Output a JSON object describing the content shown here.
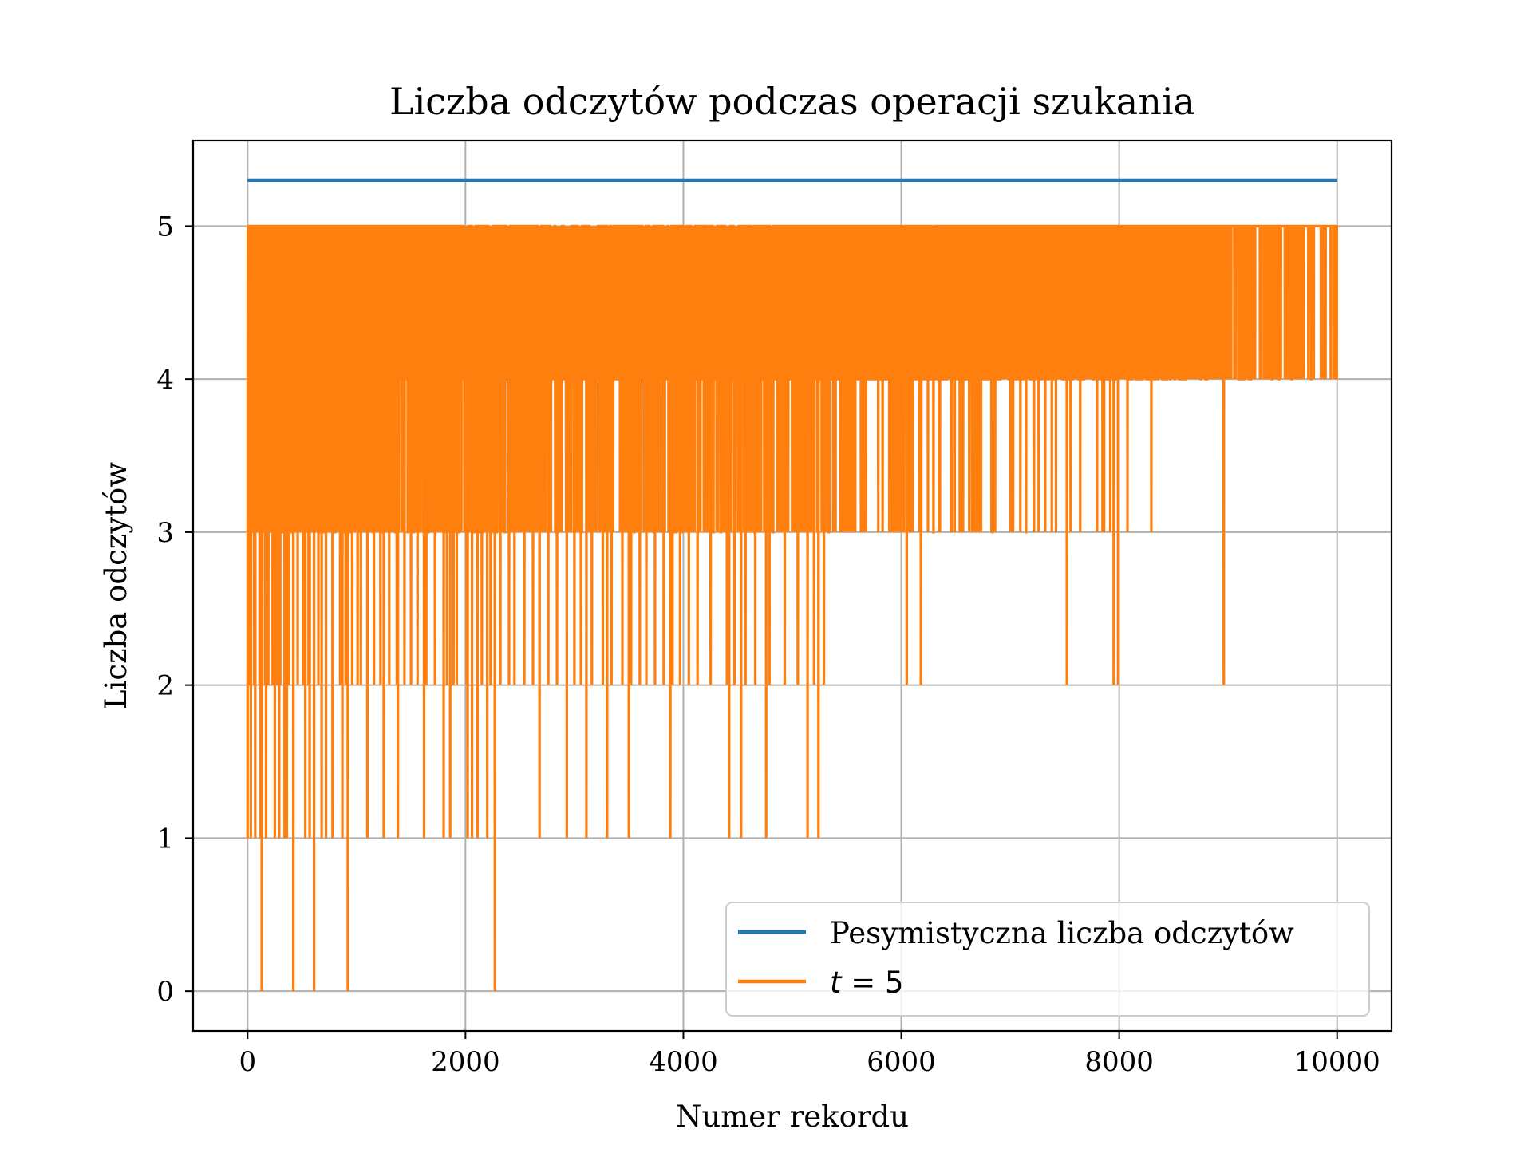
{
  "chart_data": {
    "type": "line",
    "title": "Liczba odczytów podczas operacji szukania",
    "xlabel": "Numer rekordu",
    "ylabel": "Liczba odczytów",
    "xlim": [
      -500,
      10500
    ],
    "ylim": [
      -0.26,
      5.56
    ],
    "xticks": [
      0,
      2000,
      4000,
      6000,
      8000,
      10000
    ],
    "xtick_labels": [
      "0",
      "2000",
      "4000",
      "6000",
      "8000",
      "10000"
    ],
    "yticks": [
      0,
      1,
      2,
      3,
      4,
      5
    ],
    "ytick_labels": [
      "0",
      "1",
      "2",
      "3",
      "4",
      "5"
    ],
    "grid": true,
    "legend_position": "lower-right",
    "colors": {
      "pessimistic": "#1f77b4",
      "t5": "#ff7f0e"
    },
    "pessimistic_series": {
      "name": "Pesymistyczna liczba odczytów",
      "x": [
        0,
        10000
      ],
      "y": [
        5.3,
        5.3
      ]
    },
    "t5_series": {
      "name_prefix": "t",
      "name_suffix": " = 5",
      "n_records": 10001,
      "max_reads": 5,
      "spike_floor_level_4": [
        [
          0,
          3.5
        ],
        [
          500,
          3.6
        ],
        [
          1000,
          3.6
        ],
        [
          1900,
          3.8
        ],
        [
          1950,
          4.0
        ],
        [
          2000,
          3.0
        ],
        [
          3000,
          3.0
        ],
        [
          3430,
          3.0
        ],
        [
          3440,
          4.0
        ],
        [
          3500,
          3.05
        ],
        [
          4000,
          3.1
        ],
        [
          4340,
          3.1
        ],
        [
          4350,
          4.0
        ],
        [
          4400,
          3.1
        ],
        [
          5000,
          3.4
        ],
        [
          5800,
          3.6
        ],
        [
          6000,
          3.8
        ],
        [
          6500,
          3.9
        ],
        [
          7000,
          4.1
        ],
        [
          8000,
          4.3
        ],
        [
          9000,
          4.6
        ],
        [
          10000,
          4.8
        ]
      ],
      "spike_floor_level_3": [
        [
          0,
          2.6
        ],
        [
          1000,
          2.9
        ],
        [
          2000,
          3.2
        ],
        [
          3000,
          3.5
        ],
        [
          4000,
          3.8
        ],
        [
          5000,
          4.05
        ],
        [
          6000,
          4.25
        ],
        [
          7000,
          4.55
        ],
        [
          8000,
          4.9
        ],
        [
          9000,
          5.2
        ],
        [
          10000,
          5.6
        ]
      ],
      "dips_to_2": [
        20,
        60,
        110,
        160,
        190,
        230,
        270,
        300,
        340,
        380,
        460,
        510,
        560,
        650,
        720,
        780,
        850,
        900,
        960,
        1010,
        1040,
        1100,
        1160,
        1220,
        1300,
        1370,
        1440,
        1500,
        1560,
        1640,
        1720,
        1830,
        1890,
        1920,
        2010,
        2060,
        2110,
        2150,
        2230,
        2320,
        2400,
        2450,
        2540,
        2620,
        2680,
        2760,
        2840,
        2930,
        3000,
        3060,
        3160,
        3260,
        3340,
        3440,
        3520,
        3600,
        3660,
        3740,
        3820,
        3900,
        3970,
        4050,
        4130,
        4250,
        4400,
        4470,
        4570,
        4660,
        4790,
        4930,
        5050,
        5200,
        5290,
        6050,
        6180,
        7520,
        7950,
        7990,
        8960
      ],
      "dips_to_1": [
        30,
        70,
        120,
        170,
        250,
        290,
        340,
        360,
        530,
        570,
        680,
        720,
        780,
        870,
        1100,
        1250,
        1380,
        1620,
        1800,
        1860,
        2020,
        2060,
        2110,
        2200,
        2680,
        2930,
        3110,
        3300,
        3500,
        3880,
        4420,
        4530,
        4760,
        5140,
        5240
      ],
      "dips_to_0": [
        130,
        420,
        610,
        920,
        2270
      ]
    }
  }
}
